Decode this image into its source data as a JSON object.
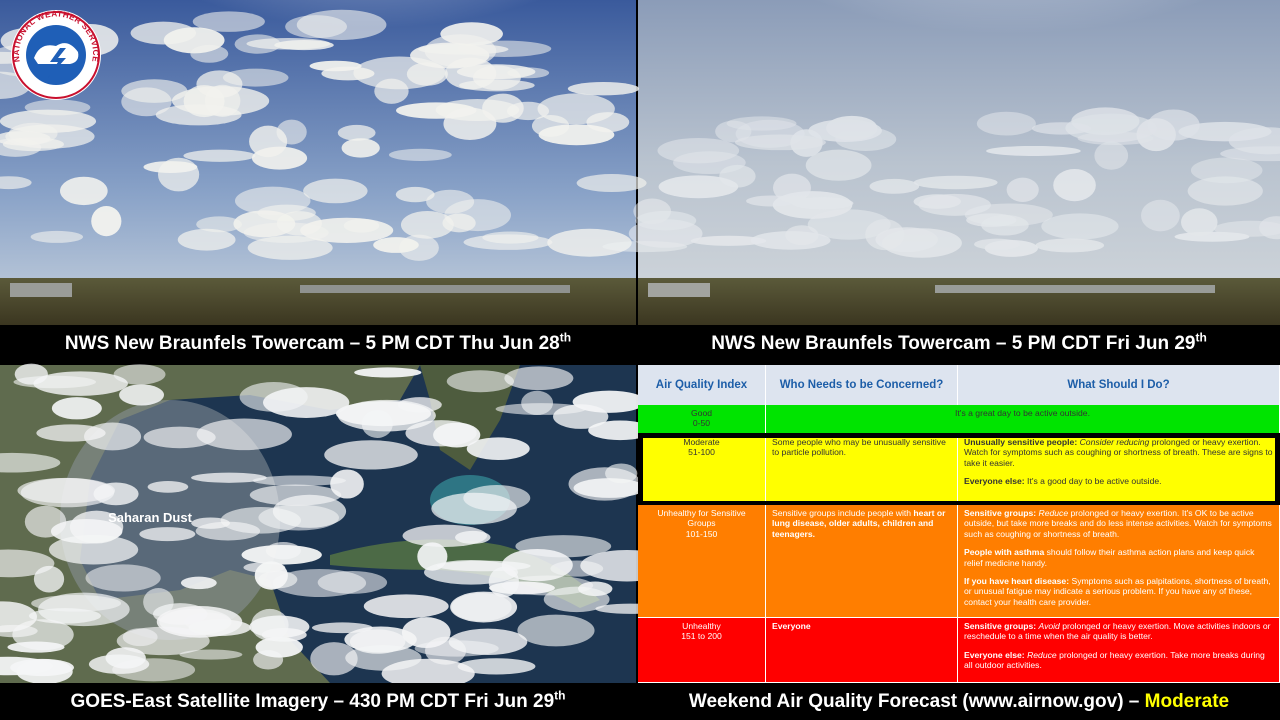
{
  "logo": {
    "text": "NATIONAL WEATHER SERVICE"
  },
  "panels": {
    "top_left": {
      "caption": "NWS New Braunfels Towercam – 5 PM CDT Thu Jun 28",
      "sup": "th"
    },
    "top_right": {
      "caption": "NWS New Braunfels Towercam – 5 PM CDT Fri Jun 29",
      "sup": "th"
    },
    "bottom_left": {
      "caption": "GOES-East Satellite Imagery – 430 PM CDT Fri Jun 29",
      "sup": "th",
      "label": "Saharan Dust"
    },
    "bottom_right": {
      "caption": "Weekend Air Quality Forecast (www.airnow.gov) – ",
      "highlight": "Moderate"
    }
  },
  "table": {
    "header": [
      "Air Quality Index",
      "Who Needs to be Concerned?",
      "What Should I Do?"
    ],
    "rows": [
      {
        "category": "Good",
        "range": "0-50",
        "color": "#00e400",
        "advice": [
          [
            {
              "t": "It's a great day to be active outside."
            }
          ]
        ]
      },
      {
        "category": "Moderate",
        "range": "51-100",
        "color": "#ffff00",
        "who": [
          [
            {
              "t": "Some people who may be unusually sensitive to particle pollution."
            }
          ]
        ],
        "advice": [
          [
            {
              "b": "Unusually sensitive people:"
            },
            {
              "t": " "
            },
            {
              "i": "Consider reducing"
            },
            {
              "t": " prolonged or heavy exertion. Watch for symptoms such as coughing or shortness of breath. These are signs to take it easier."
            }
          ],
          [
            {
              "b": "Everyone else:"
            },
            {
              "t": " It's a good day to be active outside."
            }
          ]
        ]
      },
      {
        "category": "Unhealthy for Sensitive Groups",
        "range": "101-150",
        "color": "#ff7e00",
        "who": [
          [
            {
              "t": "Sensitive groups include people with "
            },
            {
              "b": "heart or lung disease, older adults, children and teenagers."
            }
          ]
        ],
        "advice": [
          [
            {
              "b": "Sensitive groups:"
            },
            {
              "t": " "
            },
            {
              "i": "Reduce"
            },
            {
              "t": " prolonged or heavy exertion. It's OK to be active outside, but take more breaks and do less intense activities. Watch for symptoms such as coughing or shortness of breath."
            }
          ],
          [
            {
              "b": "People with asthma"
            },
            {
              "t": " should follow their asthma action plans and keep quick relief medicine handy."
            }
          ],
          [
            {
              "b": "If you have heart disease:"
            },
            {
              "t": " Symptoms such as palpitations, shortness of breath, or unusual fatigue may indicate a serious problem. If you have any of these, contact your health care provider."
            }
          ]
        ]
      },
      {
        "category": "Unhealthy",
        "range": "151 to 200",
        "color": "#ff0000",
        "who": [
          [
            {
              "b": "Everyone"
            }
          ]
        ],
        "advice": [
          [
            {
              "b": "Sensitive groups:"
            },
            {
              "t": " "
            },
            {
              "i": "Avoid"
            },
            {
              "t": " prolonged or heavy exertion. Move activities indoors or reschedule to a time when the air quality is better."
            }
          ],
          [
            {
              "b": "Everyone else:"
            },
            {
              "t": " "
            },
            {
              "i": "Reduce"
            },
            {
              "t": " prolonged or heavy exertion. Take more breaks during all outdoor activities."
            }
          ]
        ]
      }
    ]
  }
}
